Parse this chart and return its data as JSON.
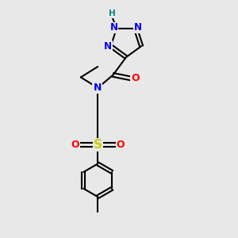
{
  "background_color": "#e8e8e8",
  "bond_color": "#000000",
  "bond_width": 1.5,
  "atom_colors": {
    "N": "#0000ee",
    "O": "#ff0000",
    "S": "#cccc00",
    "H": "#008888",
    "C": "#000000"
  }
}
